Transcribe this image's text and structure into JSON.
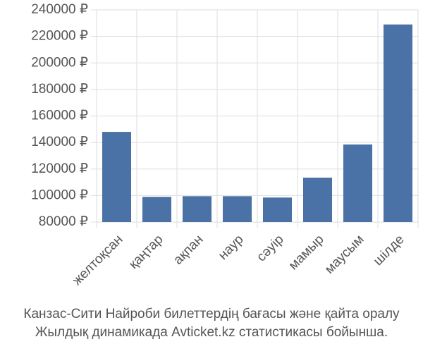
{
  "chart_data": {
    "type": "bar",
    "categories": [
      "желтоқсан",
      "қаңтар",
      "ақпан",
      "наур",
      "сәуір",
      "мамыр",
      "маусым",
      "шілде"
    ],
    "values": [
      148000,
      99000,
      99500,
      99500,
      98500,
      113500,
      138500,
      229000
    ],
    "color": "#4a72a6",
    "ylim": [
      80000,
      240000
    ],
    "yticks": [
      {
        "value": 80000,
        "label": "80000 ₽"
      },
      {
        "value": 100000,
        "label": "100000 ₽"
      },
      {
        "value": 120000,
        "label": "120000 ₽"
      },
      {
        "value": 140000,
        "label": "140000 ₽"
      },
      {
        "value": 160000,
        "label": "160000 ₽"
      },
      {
        "value": 180000,
        "label": "180000 ₽"
      },
      {
        "value": 200000,
        "label": "200000 ₽"
      },
      {
        "value": 220000,
        "label": "220000 ₽"
      },
      {
        "value": 240000,
        "label": "240000 ₽"
      }
    ],
    "grid": true,
    "caption": [
      "Канзас-Сити Найроби билеттердің бағасы және қайта оралу",
      "Жылдық динамикада Avticket.kz статистикасы бойынша."
    ]
  }
}
